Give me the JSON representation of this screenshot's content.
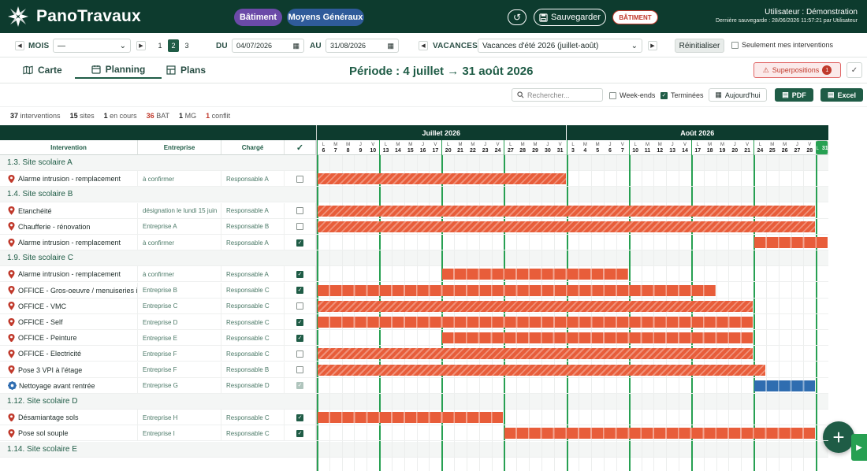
{
  "header": {
    "brand": "PanoTravaux",
    "pill_bat": "Bâtiment",
    "pill_mg": "Moyens Généraux",
    "save": "Sauvegarder",
    "badge": "BÂTIMENT",
    "user": "Utilisateur : Démonstration",
    "last_save": "Dernière sauvegarde : 28/06/2026 11:57:21 par Utilisateur"
  },
  "filters": {
    "mois_label": "MOIS",
    "mois_value": "—",
    "n1": "1",
    "n2": "2",
    "n3": "3",
    "du_label": "DU",
    "du_value": "04/07/2026",
    "au_label": "AU",
    "au_value": "31/08/2026",
    "vac_label": "VACANCES",
    "vac_value": "Vacances d'été 2026 (juillet-août)",
    "reset": "Réinitialiser",
    "only_mine": "Seulement mes interventions"
  },
  "tabs": {
    "carte": "Carte",
    "planning": "Planning",
    "plans": "Plans"
  },
  "period": "Période : 4 juillet → 31 août 2026",
  "superpositions": {
    "label": "Superpositions",
    "count": "1"
  },
  "tools": {
    "search_placeholder": "Rechercher...",
    "weekends": "Week-ends",
    "terminees": "Terminées",
    "today": "Aujourd'hui",
    "pdf": "PDF",
    "excel": "Excel"
  },
  "stats": {
    "interventions_n": "37",
    "interventions": "interventions",
    "sites_n": "15",
    "sites": "sites",
    "encours_n": "1",
    "encours": "en cours",
    "bat_n": "36",
    "bat": "BAT",
    "mg_n": "1",
    "mg": "MG",
    "conflit_n": "1",
    "conflit": "conflit"
  },
  "columns": {
    "intervention": "Intervention",
    "entreprise": "Entreprise",
    "charge": "Chargé",
    "done": "✓"
  },
  "months": [
    {
      "label": "Juillet 2026",
      "days": 20
    },
    {
      "label": "Août 2026",
      "days": 21
    }
  ],
  "days": [
    {
      "d": "L",
      "n": "6"
    },
    {
      "d": "M",
      "n": "7"
    },
    {
      "d": "M",
      "n": "8"
    },
    {
      "d": "J",
      "n": "9"
    },
    {
      "d": "V",
      "n": "10"
    },
    {
      "d": "L",
      "n": "13"
    },
    {
      "d": "M",
      "n": "14"
    },
    {
      "d": "M",
      "n": "15"
    },
    {
      "d": "J",
      "n": "16"
    },
    {
      "d": "V",
      "n": "17"
    },
    {
      "d": "L",
      "n": "20"
    },
    {
      "d": "M",
      "n": "21"
    },
    {
      "d": "M",
      "n": "22"
    },
    {
      "d": "J",
      "n": "23"
    },
    {
      "d": "V",
      "n": "24"
    },
    {
      "d": "L",
      "n": "27"
    },
    {
      "d": "M",
      "n": "28"
    },
    {
      "d": "M",
      "n": "29"
    },
    {
      "d": "J",
      "n": "30"
    },
    {
      "d": "V",
      "n": "31"
    },
    {
      "d": "L",
      "n": "3"
    },
    {
      "d": "M",
      "n": "4"
    },
    {
      "d": "M",
      "n": "5"
    },
    {
      "d": "J",
      "n": "6"
    },
    {
      "d": "V",
      "n": "7"
    },
    {
      "d": "L",
      "n": "10"
    },
    {
      "d": "M",
      "n": "11"
    },
    {
      "d": "M",
      "n": "12"
    },
    {
      "d": "J",
      "n": "13"
    },
    {
      "d": "V",
      "n": "14"
    },
    {
      "d": "L",
      "n": "17"
    },
    {
      "d": "M",
      "n": "18"
    },
    {
      "d": "M",
      "n": "19"
    },
    {
      "d": "J",
      "n": "20"
    },
    {
      "d": "V",
      "n": "21"
    },
    {
      "d": "L",
      "n": "24"
    },
    {
      "d": "M",
      "n": "25"
    },
    {
      "d": "M",
      "n": "26"
    },
    {
      "d": "J",
      "n": "27"
    },
    {
      "d": "V",
      "n": "28"
    },
    {
      "d": "L",
      "n": "31"
    }
  ],
  "rows": [
    {
      "type": "group",
      "label": "1.3. Site scolaire A"
    },
    {
      "type": "item",
      "name": "Alarme intrusion - remplacement",
      "ent": "à confirmer",
      "chg": "Responsable A",
      "done": false,
      "bars": [
        {
          "s": 0,
          "e": 20,
          "style": "hatch"
        }
      ]
    },
    {
      "type": "group",
      "label": "1.4. Site scolaire B"
    },
    {
      "type": "item",
      "name": "Etanchéité",
      "ent": "désignation le lundi 15 juin",
      "chg": "Responsable A",
      "done": false,
      "bars": [
        {
          "s": 0,
          "e": 40,
          "style": "hatch"
        }
      ]
    },
    {
      "type": "item",
      "name": "Chaufferie - rénovation",
      "ent": "Entreprise A",
      "chg": "Responsable B",
      "done": false,
      "bars": [
        {
          "s": 0,
          "e": 40,
          "style": "hatch"
        }
      ]
    },
    {
      "type": "item",
      "name": "Alarme intrusion - remplacement",
      "ent": "à confirmer",
      "chg": "Responsable A",
      "done": true,
      "bars": [
        {
          "s": 35,
          "e": 41,
          "style": "solid"
        }
      ]
    },
    {
      "type": "group",
      "label": "1.9. Site scolaire C"
    },
    {
      "type": "item",
      "name": "Alarme intrusion - remplacement",
      "ent": "à confirmer",
      "chg": "Responsable A",
      "done": true,
      "bars": [
        {
          "s": 10,
          "e": 25,
          "style": "solid"
        }
      ]
    },
    {
      "type": "item",
      "name": "OFFICE - Gros-oeuvre / menuiseries int.",
      "ent": "Entreprise B",
      "chg": "Responsable C",
      "done": true,
      "bars": [
        {
          "s": 0,
          "e": 32,
          "style": "solid"
        }
      ]
    },
    {
      "type": "item",
      "name": "OFFICE - VMC",
      "ent": "Entreprise C",
      "chg": "Responsable C",
      "done": false,
      "bars": [
        {
          "s": 0,
          "e": 35,
          "style": "hatch"
        }
      ]
    },
    {
      "type": "item",
      "name": "OFFICE - Self",
      "ent": "Entreprise D",
      "chg": "Responsable C",
      "done": true,
      "bars": [
        {
          "s": 0,
          "e": 35,
          "style": "solid"
        }
      ]
    },
    {
      "type": "item",
      "name": "OFFICE - Peinture",
      "ent": "Entreprise E",
      "chg": "Responsable C",
      "done": true,
      "bars": [
        {
          "s": 10,
          "e": 35,
          "style": "solid"
        }
      ]
    },
    {
      "type": "item",
      "name": "OFFICE - Electricité",
      "ent": "Entreprise F",
      "chg": "Responsable C",
      "done": false,
      "bars": [
        {
          "s": 0,
          "e": 35,
          "style": "hatch"
        }
      ]
    },
    {
      "type": "item",
      "name": "Pose 3 VPI à l'étage",
      "ent": "Entreprise F",
      "chg": "Responsable B",
      "done": false,
      "bars": [
        {
          "s": 0,
          "e": 36,
          "style": "hatch"
        }
      ]
    },
    {
      "type": "item",
      "name": "Nettoyage avant rentrée",
      "ent": "Entreprise G",
      "chg": "Responsable D",
      "done": false,
      "mg": true,
      "bars": [
        {
          "s": 35,
          "e": 40,
          "style": "blue"
        }
      ]
    },
    {
      "type": "group",
      "label": "1.12. Site scolaire D"
    },
    {
      "type": "item",
      "name": "Désamiantage sols",
      "ent": "Entreprise H",
      "chg": "Responsable C",
      "done": true,
      "bars": [
        {
          "s": 0,
          "e": 15,
          "style": "solid"
        }
      ]
    },
    {
      "type": "item",
      "name": "Pose sol souple",
      "ent": "Entreprise I",
      "chg": "Responsable C",
      "done": true,
      "bars": [
        {
          "s": 15,
          "e": 40,
          "style": "solid"
        }
      ]
    },
    {
      "type": "group",
      "label": "1.14. Site scolaire E"
    }
  ],
  "colors": {
    "dark": "#0d3b2e",
    "accent": "#1f5c46",
    "bar": "#e85d3a",
    "mg": "#2f6db0",
    "week": "#27a052"
  }
}
